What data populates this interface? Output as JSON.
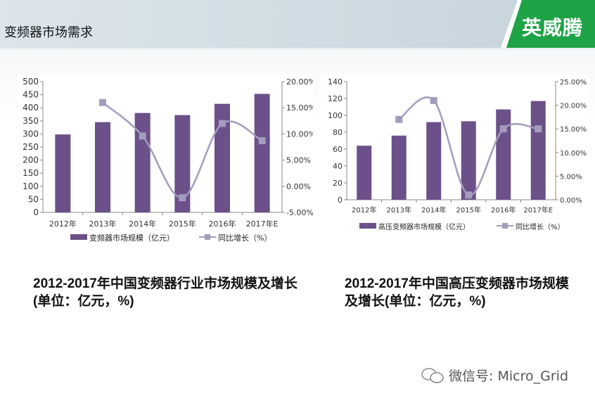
{
  "header": {
    "title": "变频器市场需求",
    "logo_text": "英威腾",
    "accent": "#1fa347"
  },
  "chart_data": [
    {
      "type": "bar+line",
      "categories": [
        "2012年",
        "2013年",
        "2014年",
        "2015年",
        "2016年",
        "2017年E"
      ],
      "series": [
        {
          "name": "变频器市场规模（亿元）",
          "type": "bar",
          "axis": "left",
          "values": [
            298,
            345,
            380,
            372,
            415,
            453
          ]
        },
        {
          "name": "同比增长（%）",
          "type": "line",
          "axis": "right",
          "values": [
            null,
            16.0,
            9.6,
            -2.2,
            12.0,
            8.7
          ]
        }
      ],
      "left_axis": {
        "ylim": [
          0,
          500
        ],
        "ticks": [
          "0",
          "50",
          "100",
          "150",
          "200",
          "250",
          "300",
          "350",
          "400",
          "450",
          "500"
        ]
      },
      "right_axis": {
        "ylim": [
          -5,
          20
        ],
        "ticks": [
          "-5.00%",
          "0.00%",
          "5.00%",
          "10.00%",
          "15.00%",
          "20.00%"
        ]
      },
      "legend": "bottom",
      "grid": false,
      "bar_color": "#6b5089",
      "line_color": "#a39cbc"
    },
    {
      "type": "bar+line",
      "categories": [
        "2012年",
        "2013年",
        "2014年",
        "2015年",
        "2016年",
        "2017年E"
      ],
      "series": [
        {
          "name": "高压变频器市场规模（亿元）",
          "type": "bar",
          "axis": "left",
          "values": [
            64,
            76,
            92,
            93,
            107,
            117
          ]
        },
        {
          "name": "同比增长（%）",
          "type": "line",
          "axis": "right",
          "values": [
            null,
            17.0,
            21.0,
            1.0,
            15.0,
            15.0
          ]
        }
      ],
      "left_axis": {
        "ylim": [
          0,
          140
        ],
        "ticks": [
          "0",
          "20",
          "40",
          "60",
          "80",
          "100",
          "120",
          "140"
        ]
      },
      "right_axis": {
        "ylim": [
          0,
          25
        ],
        "ticks": [
          "0.00%",
          "5.00%",
          "10.00%",
          "15.00%",
          "20.00%",
          "25.00%"
        ]
      },
      "legend": "bottom",
      "grid": false,
      "bar_color": "#6b5089",
      "line_color": "#a39cbc"
    }
  ],
  "captions": [
    "2012-2017年中国变频器行业市场规模及增长(单位：亿元，%)",
    "2012-2017年中国高压变频器市场规模及增长(单位：亿元，%)"
  ],
  "watermark": "微信号: Micro_Grid"
}
